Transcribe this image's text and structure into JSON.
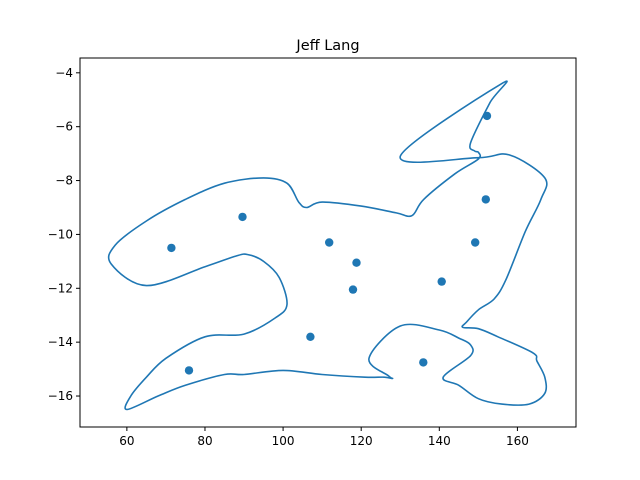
{
  "chart_data": {
    "type": "scatter",
    "title": "Jeff Lang",
    "xlabel": "",
    "ylabel": "",
    "xlim": [
      48,
      175
    ],
    "ylim": [
      -17.15,
      -3.45
    ],
    "xticks": [
      60,
      80,
      100,
      120,
      140,
      160
    ],
    "yticks": [
      -4,
      -6,
      -8,
      -10,
      -12,
      -14,
      -16
    ],
    "grid": false,
    "color": "#1f77b4",
    "series": [
      {
        "kind": "points",
        "x": [
          152.2,
          151.9,
          149.2,
          140.6,
          135.9,
          118.8,
          117.9,
          111.8,
          107.0,
          89.6,
          71.4,
          75.9
        ],
        "y": [
          -5.6,
          -8.7,
          -10.3,
          -11.75,
          -14.75,
          -11.05,
          -12.05,
          -10.3,
          -13.8,
          -9.35,
          -10.5,
          -15.05
        ]
      },
      {
        "kind": "curve",
        "x": [
          130,
          150,
          158,
          167,
          166,
          162,
          157,
          154,
          150,
          147,
          146,
          150,
          155,
          164,
          165,
          167,
          167,
          163,
          156,
          150,
          145,
          141,
          148,
          148,
          145,
          140,
          130,
          122,
          127,
          128,
          126,
          121,
          110,
          100,
          90,
          85,
          75,
          68,
          60,
          61,
          65,
          70,
          80,
          90,
          98,
          101,
          99,
          95,
          91,
          88,
          80,
          65,
          56,
          57,
          65,
          75,
          85,
          95,
          101,
          104,
          106,
          110,
          120,
          129,
          133,
          136,
          144,
          150,
          150,
          149,
          148,
          153,
          156
        ],
        "y": [
          -7.1,
          -7.15,
          -7.05,
          -7.9,
          -8.7,
          -9.9,
          -11.7,
          -12.4,
          -12.8,
          -13.25,
          -13.45,
          -13.5,
          -13.8,
          -14.4,
          -14.7,
          -15.3,
          -15.9,
          -16.3,
          -16.3,
          -16.1,
          -15.6,
          -15.3,
          -14.5,
          -14.1,
          -13.85,
          -13.55,
          -13.4,
          -14.6,
          -15.25,
          -15.35,
          -15.3,
          -15.3,
          -15.2,
          -15.05,
          -15.2,
          -15.2,
          -15.6,
          -16.0,
          -16.5,
          -16.0,
          -15.3,
          -14.6,
          -13.8,
          -13.7,
          -13.1,
          -12.6,
          -11.6,
          -11.0,
          -10.75,
          -10.8,
          -11.2,
          -11.9,
          -11.1,
          -10.4,
          -9.5,
          -8.7,
          -8.1,
          -7.9,
          -8.1,
          -8.8,
          -9.0,
          -8.8,
          -8.95,
          -9.2,
          -9.3,
          -8.7,
          -7.75,
          -7.2,
          -6.95,
          -6.9,
          -6.6,
          -5.1,
          -4.4
        ]
      }
    ]
  }
}
